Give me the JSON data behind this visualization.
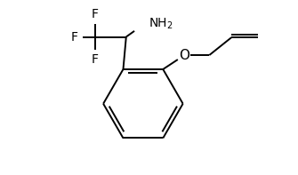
{
  "background": "#ffffff",
  "line_color": "#000000",
  "line_width": 1.4,
  "font_size_labels": 10,
  "fig_width": 3.35,
  "fig_height": 1.97,
  "dpi": 100,
  "xlim": [
    0,
    10
  ],
  "ylim": [
    0,
    5.9
  ]
}
